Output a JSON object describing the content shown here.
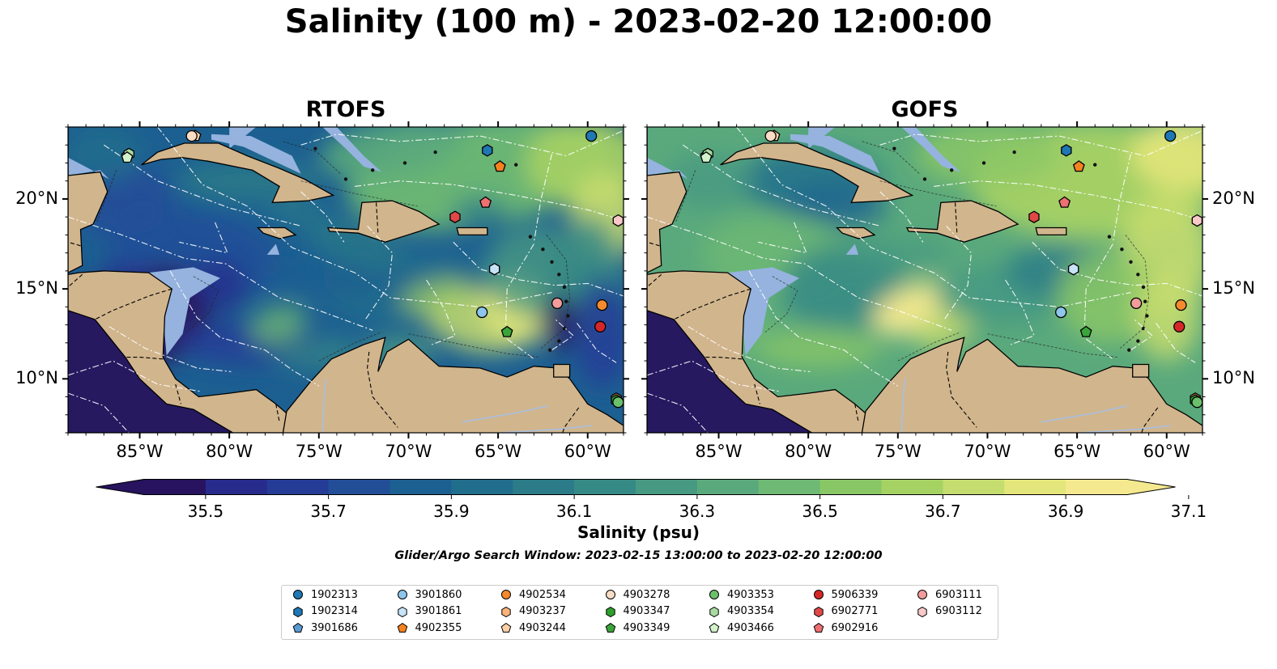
{
  "title": "Salinity (100 m) - 2023-02-20 12:00:00",
  "panels": [
    {
      "id": "rtofs",
      "title": "RTOFS"
    },
    {
      "id": "gofs",
      "title": "GOFS"
    }
  ],
  "map_extent": {
    "lon": [
      -89,
      -58
    ],
    "lat": [
      7,
      24
    ]
  },
  "lon_ticks": [
    "85°W",
    "80°W",
    "75°W",
    "70°W",
    "65°W",
    "60°W"
  ],
  "lat_ticks": [
    "20°N",
    "15°N",
    "10°N"
  ],
  "colorbar": {
    "label": "Salinity (psu)",
    "ticks": [
      "35.5",
      "35.7",
      "35.9",
      "36.1",
      "36.3",
      "36.5",
      "36.7",
      "36.9",
      "37.1"
    ],
    "colors": [
      "#27135e",
      "#272b8c",
      "#253c97",
      "#224e98",
      "#1c5f91",
      "#216e8c",
      "#2b7c88",
      "#368a85",
      "#479982",
      "#5aa97c",
      "#6eb973",
      "#89c766",
      "#a6d264",
      "#c5dc6e",
      "#e3e67a",
      "#f4e98f"
    ],
    "extend": "both"
  },
  "search_window": "Glider/Argo Search Window: 2023-02-15 13:00:00 to 2023-02-20 12:00:00",
  "floats": [
    {
      "id": "1902313",
      "color": "#1f77b4",
      "shape": "circle",
      "lon": -59.8,
      "lat": 23.5
    },
    {
      "id": "1902314",
      "color": "#1f77b4",
      "shape": "hexagon",
      "lon": -65.6,
      "lat": 22.7
    },
    {
      "id": "3901686",
      "color": "#5b9bd5",
      "shape": "pentagon",
      "lon": -85.7,
      "lat": 22.4
    },
    {
      "id": "3901860",
      "color": "#8ec5ea",
      "shape": "circle",
      "lon": -65.9,
      "lat": 13.7
    },
    {
      "id": "3901861",
      "color": "#c6e3f7",
      "shape": "hexagon",
      "lon": -65.2,
      "lat": 16.1
    },
    {
      "id": "4902355",
      "color": "#f58220",
      "shape": "pentagon",
      "lon": -64.9,
      "lat": 21.8
    },
    {
      "id": "4902534",
      "color": "#f58a2c",
      "shape": "circle",
      "lon": -59.2,
      "lat": 14.1
    },
    {
      "id": "4903237",
      "color": "#fab37a",
      "shape": "hexagon",
      "lon": -58.4,
      "lat": 8.9
    },
    {
      "id": "4903244",
      "color": "#fdd0a8",
      "shape": "pentagon",
      "lon": -81.9,
      "lat": 23.5
    },
    {
      "id": "4903278",
      "color": "#f9ddc4",
      "shape": "circle",
      "lon": -82.1,
      "lat": 23.5
    },
    {
      "id": "4903347",
      "color": "#2ca02c",
      "shape": "hexagon",
      "lon": -58.4,
      "lat": 8.8
    },
    {
      "id": "4903349",
      "color": "#3aa53a",
      "shape": "pentagon",
      "lon": -64.5,
      "lat": 12.6
    },
    {
      "id": "4903353",
      "color": "#6cc06c",
      "shape": "circle",
      "lon": -58.3,
      "lat": 8.7
    },
    {
      "id": "4903354",
      "color": "#a8dba1",
      "shape": "hexagon",
      "lon": -85.6,
      "lat": 22.5
    },
    {
      "id": "4903466",
      "color": "#d3f2cc",
      "shape": "pentagon",
      "lon": -85.7,
      "lat": 22.3
    },
    {
      "id": "5906339",
      "color": "#d62728",
      "shape": "circle",
      "lon": -59.3,
      "lat": 12.9
    },
    {
      "id": "6902771",
      "color": "#e04848",
      "shape": "hexagon",
      "lon": -67.4,
      "lat": 19.0
    },
    {
      "id": "6902916",
      "color": "#ee7070",
      "shape": "pentagon",
      "lon": -65.7,
      "lat": 19.8
    },
    {
      "id": "6903111",
      "color": "#f29c9c",
      "shape": "circle",
      "lon": -61.7,
      "lat": 14.2
    },
    {
      "id": "6903112",
      "color": "#f9c8c8",
      "shape": "hexagon",
      "lon": -58.3,
      "lat": 18.8
    }
  ]
}
